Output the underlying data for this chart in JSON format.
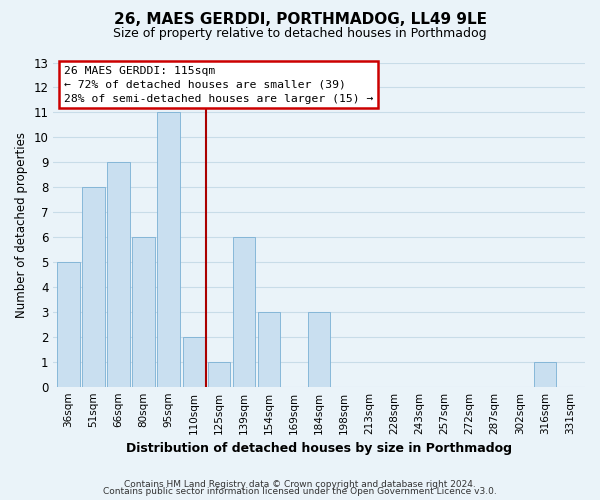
{
  "title": "26, MAES GERDDI, PORTHMADOG, LL49 9LE",
  "subtitle": "Size of property relative to detached houses in Porthmadog",
  "xlabel": "Distribution of detached houses by size in Porthmadog",
  "ylabel": "Number of detached properties",
  "categories": [
    "36sqm",
    "51sqm",
    "66sqm",
    "80sqm",
    "95sqm",
    "110sqm",
    "125sqm",
    "139sqm",
    "154sqm",
    "169sqm",
    "184sqm",
    "198sqm",
    "213sqm",
    "228sqm",
    "243sqm",
    "257sqm",
    "272sqm",
    "287sqm",
    "302sqm",
    "316sqm",
    "331sqm"
  ],
  "values": [
    5,
    8,
    9,
    6,
    11,
    2,
    1,
    6,
    3,
    0,
    3,
    0,
    0,
    0,
    0,
    0,
    0,
    0,
    0,
    1,
    0
  ],
  "highlight_index": 5,
  "bar_color": "#c9dff0",
  "bar_edge_color": "#7ab0d4",
  "highlight_line_color": "#aa0000",
  "ylim": [
    0,
    13
  ],
  "yticks": [
    0,
    1,
    2,
    3,
    4,
    5,
    6,
    7,
    8,
    9,
    10,
    11,
    12,
    13
  ],
  "annotation_title": "26 MAES GERDDI: 115sqm",
  "annotation_line1": "← 72% of detached houses are smaller (39)",
  "annotation_line2": "28% of semi-detached houses are larger (15) →",
  "annotation_box_color": "#ffffff",
  "annotation_box_edge": "#cc0000",
  "footer_line1": "Contains HM Land Registry data © Crown copyright and database right 2024.",
  "footer_line2": "Contains public sector information licensed under the Open Government Licence v3.0.",
  "grid_color": "#c8dce8",
  "background_color": "#eaf3f9"
}
